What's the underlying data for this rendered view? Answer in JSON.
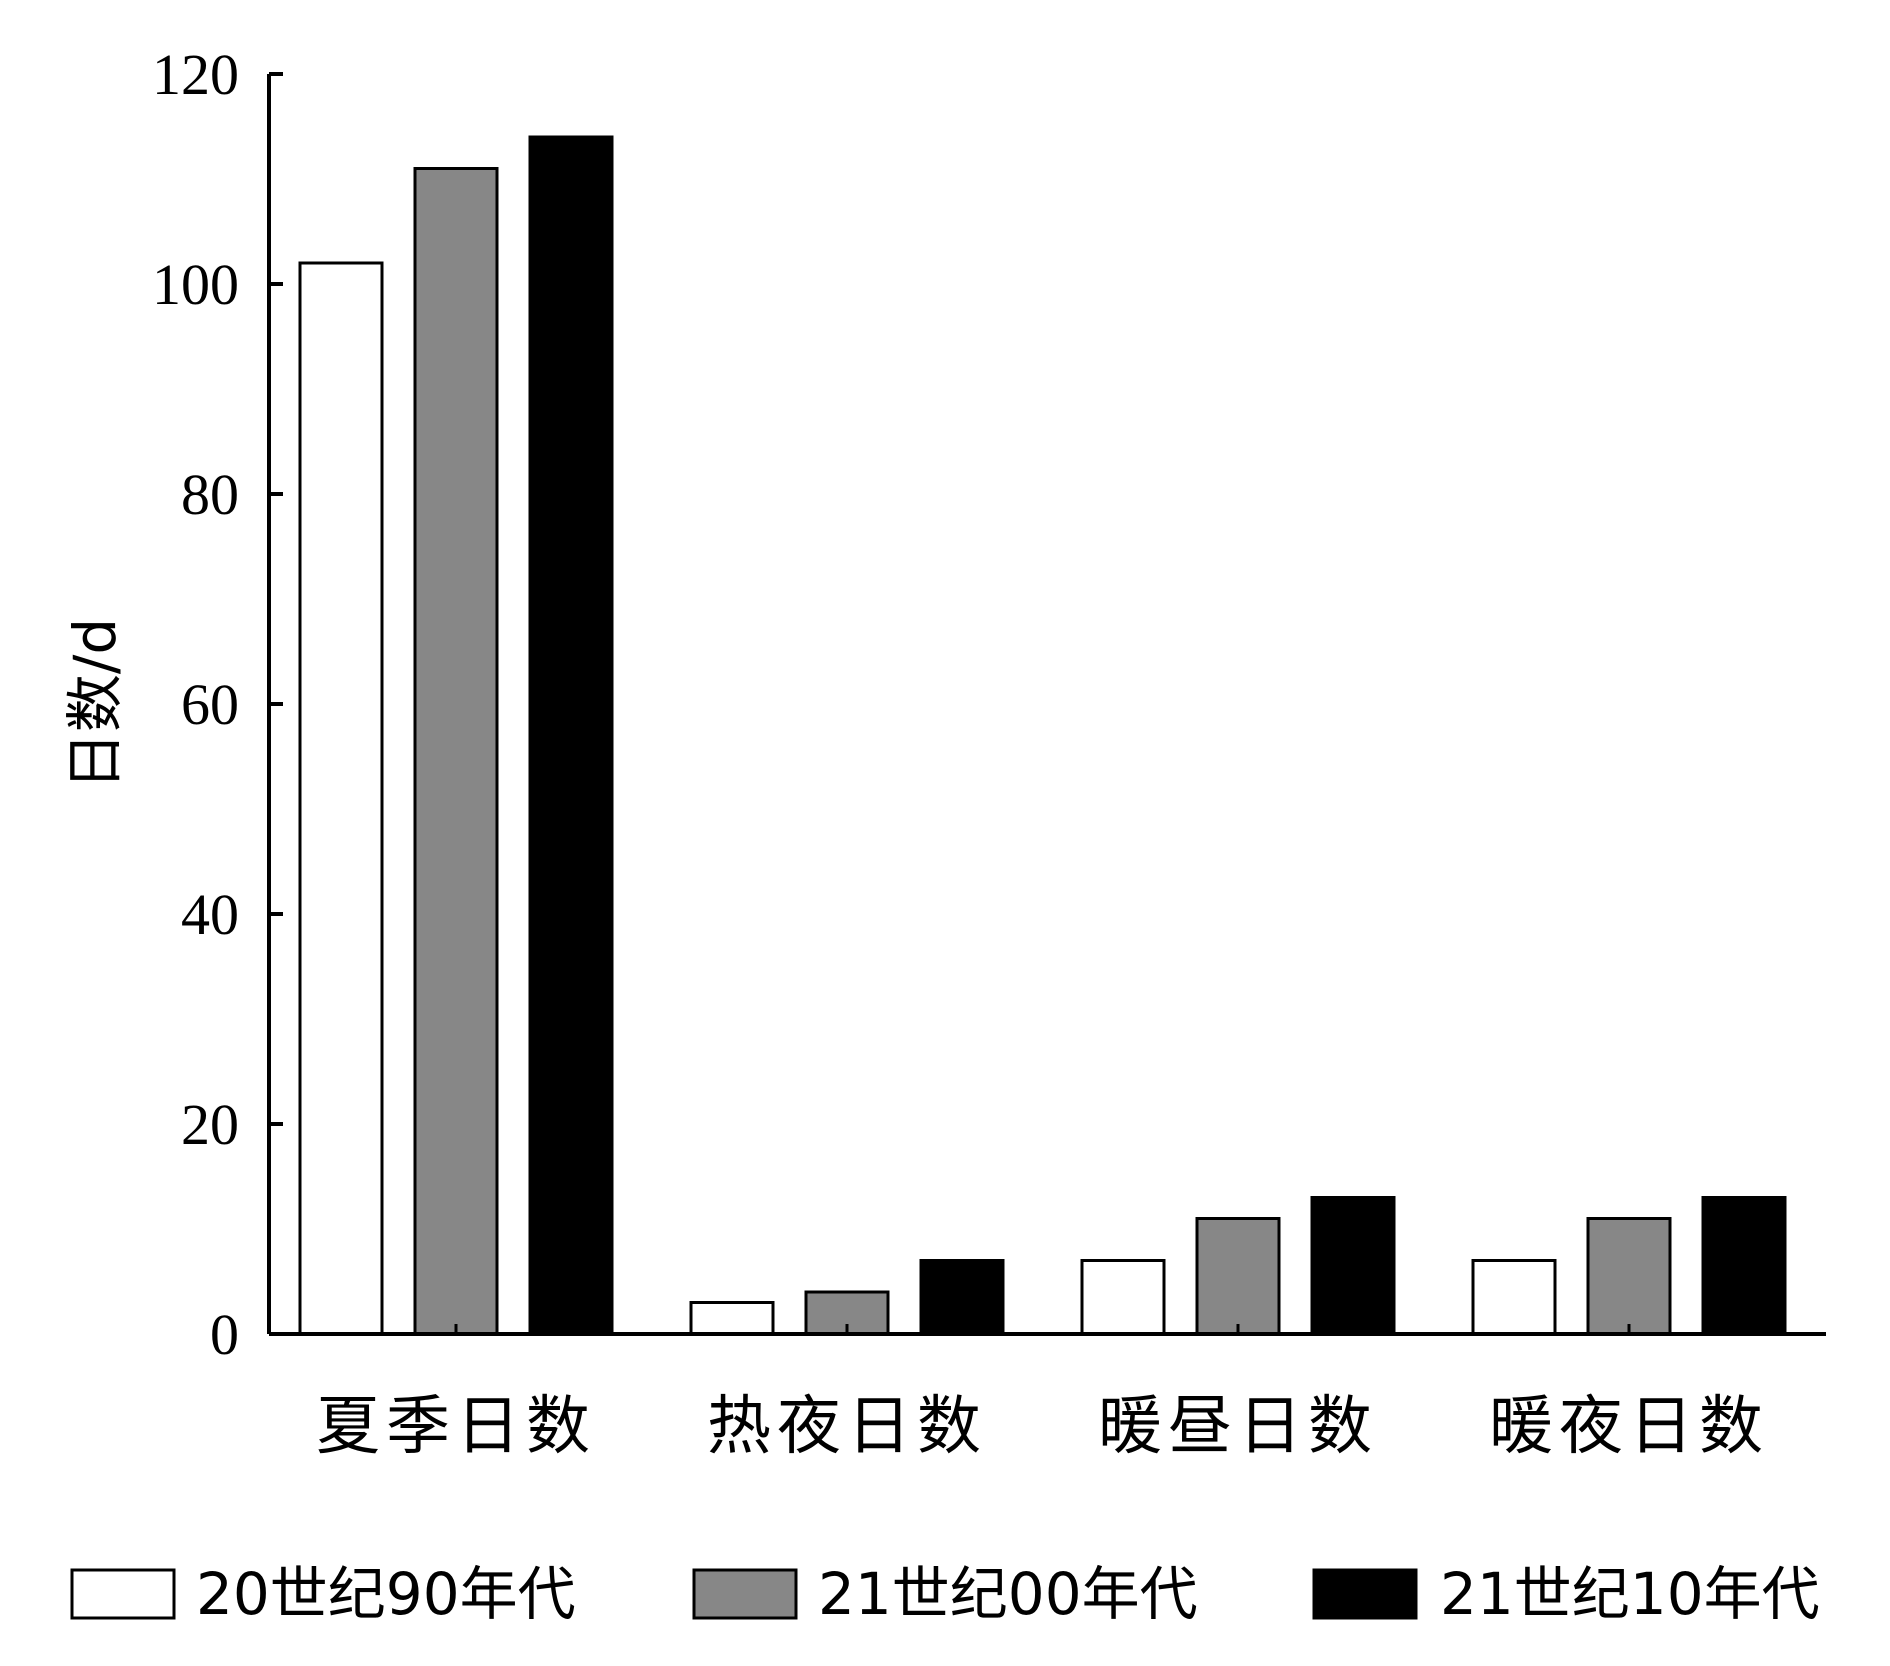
{
  "chart_data": {
    "type": "bar",
    "title": "",
    "ylabel": "日数/d",
    "xlabel": "",
    "ylim": [
      0,
      120
    ],
    "yticks": [
      0,
      20,
      40,
      60,
      80,
      100,
      120
    ],
    "grid": false,
    "legend_position": "bottom",
    "categories": [
      "夏季日数",
      "热夜日数",
      "暖昼日数",
      "暖夜日数"
    ],
    "series": [
      {
        "name": "20世纪90年代",
        "color": "#ffffff",
        "values": [
          102,
          3,
          7,
          7
        ]
      },
      {
        "name": "21世纪00年代",
        "color": "#878787",
        "values": [
          111,
          4,
          11,
          11
        ]
      },
      {
        "name": "21世纪10年代",
        "color": "#000000",
        "values": [
          114,
          7,
          13,
          13
        ]
      }
    ]
  }
}
